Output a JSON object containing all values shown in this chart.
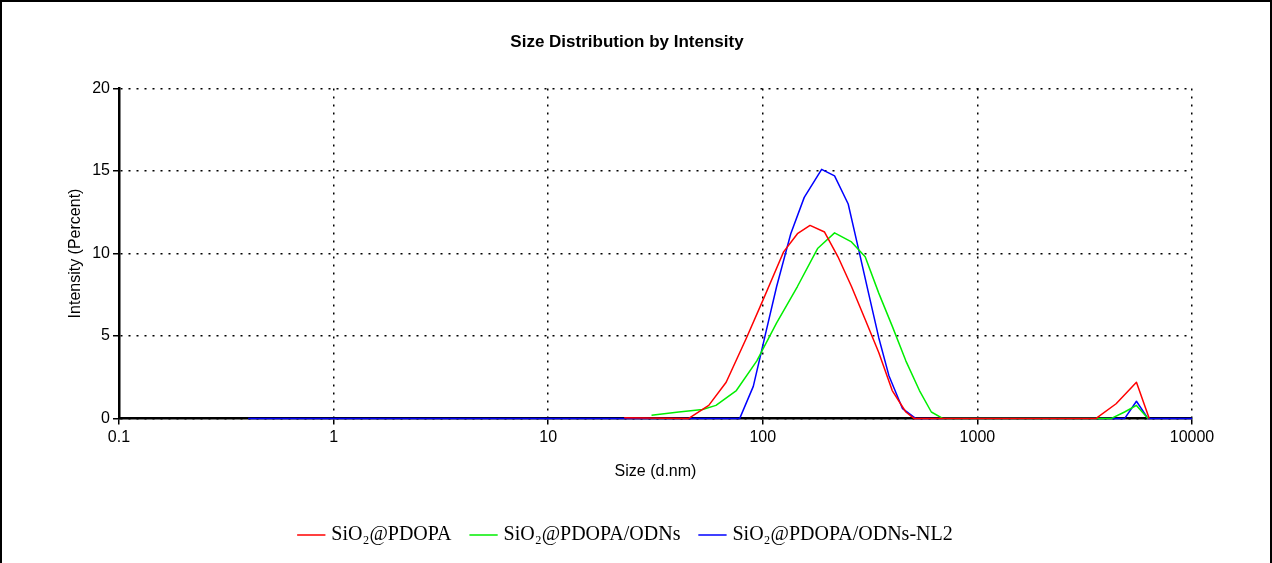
{
  "chart_data": {
    "type": "line",
    "title": "Size Distribution by Intensity",
    "xlabel": "Size (d.nm)",
    "ylabel": "Intensity (Percent)",
    "log": "x",
    "xlim": [
      0.1,
      10000
    ],
    "xticks": [
      0.1,
      1,
      10,
      100,
      1000,
      10000
    ],
    "ylim": [
      0,
      20
    ],
    "yticks": [
      0,
      5,
      10,
      15,
      20
    ],
    "grid": true,
    "legend": "bottom",
    "marker": "none",
    "line_style": "solid",
    "series": [
      {
        "name": "SiO₂@PDOPA",
        "color": "#ff0000",
        "x": [
          22.6,
          45,
          56,
          67.5,
          84,
          99.6,
          125,
          145,
          166,
          194,
          224,
          259,
          300,
          347,
          401,
          464,
          508,
          3560,
          4430,
          5510,
          6320
        ],
        "values": [
          0.05,
          0,
          0.8,
          2.2,
          4.9,
          7.1,
          10.1,
          11.2,
          11.7,
          11.3,
          9.8,
          8.0,
          6.0,
          4.0,
          1.7,
          0.4,
          0,
          0,
          0.9,
          2.2,
          0
        ]
      },
      {
        "name": "SiO₂@PDOPA/ODNs",
        "color": "#00ee00",
        "x": [
          30.3,
          40.6,
          52.4,
          60.5,
          75.3,
          93.8,
          116,
          145,
          180,
          216,
          259,
          300,
          347,
          401,
          464,
          537,
          610,
          692,
          4190,
          4850,
          5510,
          6240
        ],
        "values": [
          0.2,
          0.4,
          0.55,
          0.8,
          1.7,
          3.5,
          5.8,
          8.0,
          10.3,
          11.25,
          10.7,
          9.8,
          7.6,
          5.6,
          3.5,
          1.7,
          0.4,
          0,
          0,
          0.4,
          0.8,
          0
        ]
      },
      {
        "name": "SiO₂@PDOPA/ODNs-NL2",
        "color": "#0000ff",
        "x": [
          0.4,
          78,
          90.3,
          102,
          116,
          135,
          156,
          188,
          216,
          250,
          279,
          311,
          347,
          387,
          448,
          517,
          4850,
          5510,
          6240,
          10000
        ],
        "values": [
          0,
          0,
          1.95,
          4.9,
          8.0,
          11.2,
          13.4,
          15.1,
          14.7,
          13.0,
          10.3,
          7.6,
          4.9,
          2.6,
          0.6,
          0,
          0,
          1.05,
          0,
          0
        ]
      }
    ]
  }
}
